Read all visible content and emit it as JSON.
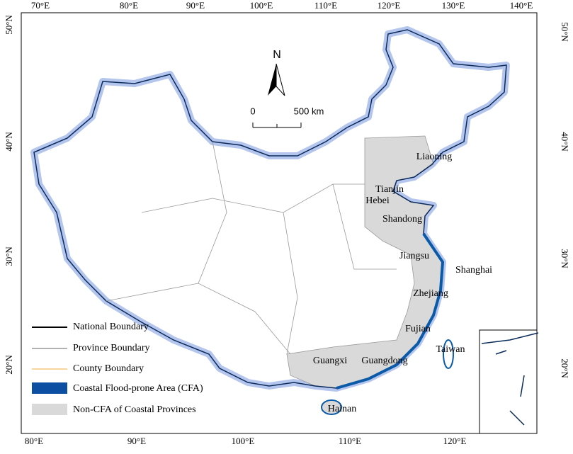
{
  "map": {
    "top_lon_labels": [
      "70°E",
      "80°E",
      "90°E",
      "100°E",
      "110°E",
      "120°E",
      "130°E",
      "140°E"
    ],
    "bottom_lon_labels": [
      "80°E",
      "90°E",
      "100°E",
      "110°E",
      "120°E"
    ],
    "left_lat_labels": [
      "50°N",
      "40°N",
      "30°N",
      "20°N"
    ],
    "right_lat_labels": [
      "50°N",
      "40°N",
      "30°N",
      "20°N"
    ],
    "north_arrow": "N",
    "scale_bar": {
      "start": "0",
      "end": "500 km"
    },
    "province_labels": [
      "Liaoning",
      "Tianjin",
      "Hebei",
      "Shandong",
      "Jiangsu",
      "Shanghai",
      "Zhejiang",
      "Fujian",
      "Taiwan",
      "Guangxi",
      "Guangdong",
      "Hainan"
    ],
    "legend": [
      "National Boundary",
      "Province Boundary",
      "County Boundary",
      "Coastal Flood-prone Area (CFA)",
      "Non-CFA of Coastal Provinces"
    ]
  }
}
